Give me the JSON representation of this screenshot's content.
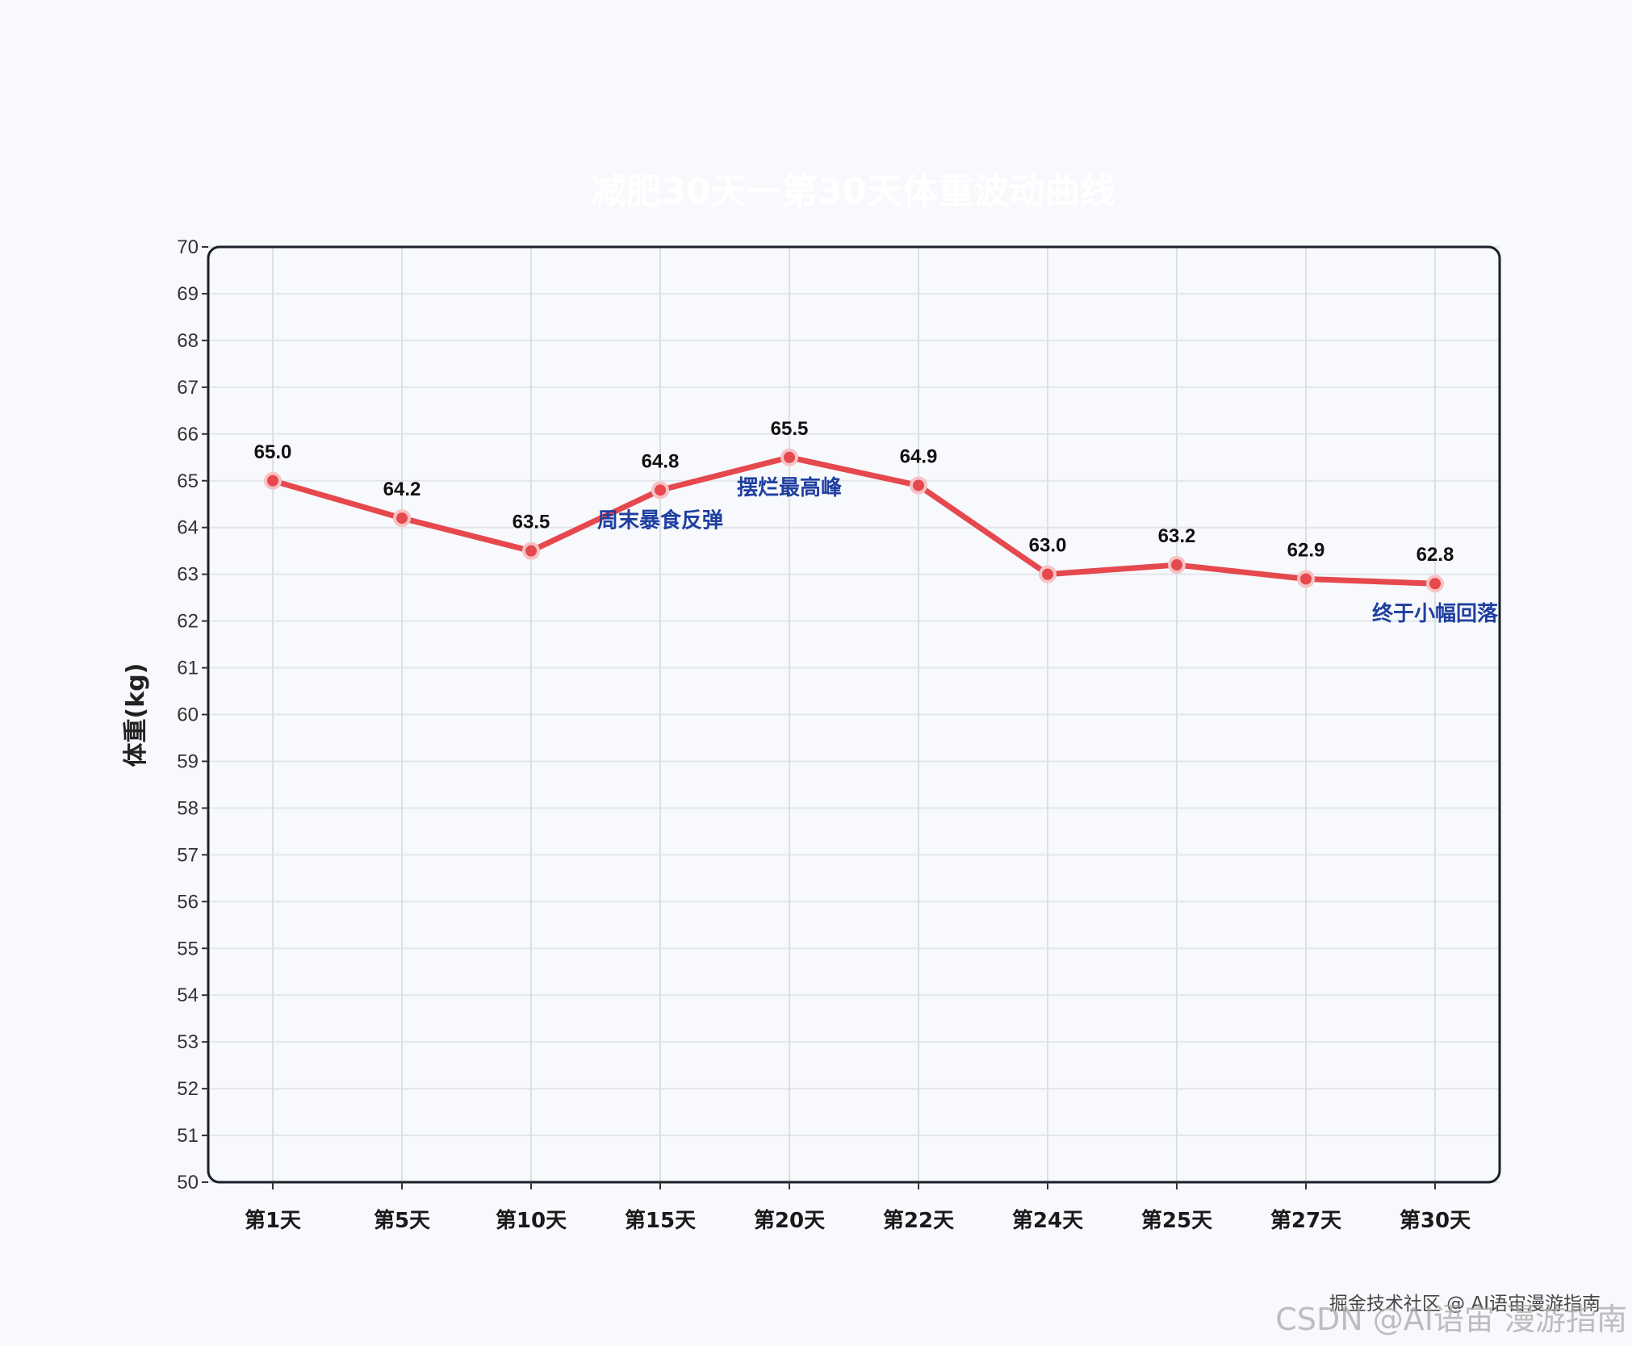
{
  "chart_data": {
    "type": "line",
    "title": "减肥30天一第30天体重波动曲线",
    "xlabel": "",
    "ylabel": "体重(kg)",
    "ylim": [
      50,
      70
    ],
    "y_ticks": [
      70,
      69,
      68,
      67,
      66,
      65,
      64,
      63,
      62,
      61,
      60,
      59,
      58,
      57,
      56,
      55,
      54,
      53,
      52,
      51,
      50
    ],
    "categories": [
      "第1天",
      "第5天",
      "第10天",
      "第15天",
      "第20天",
      "第22天",
      "第24天",
      "第25天",
      "第27天",
      "第30天"
    ],
    "series": [
      {
        "name": "体重",
        "values": [
          65.0,
          64.2,
          63.5,
          64.8,
          65.5,
          64.9,
          63.0,
          63.2,
          62.9,
          62.8
        ],
        "labels": [
          "65.0",
          "64.2",
          "63.5",
          "64.8",
          "65.5",
          "64.9",
          "63.0",
          "63.2",
          "62.9",
          "62.8"
        ]
      }
    ],
    "annotations": [
      {
        "category": "第15天",
        "text": "周末暴食反弹"
      },
      {
        "category": "第20天",
        "text": "摆烂最高峰"
      },
      {
        "category": "第30天",
        "text": "终于小幅回落"
      }
    ],
    "grid": true,
    "colors": {
      "line": "#e5484d",
      "marker": "#e5484d",
      "marker_edge": "#f6c2c4",
      "annotation": "#1f3fa0",
      "frame": "#1c1f2a",
      "grid": "#e3e6ea"
    }
  },
  "watermark": {
    "line1": "掘金技术社区 @ AI语宙漫游指南",
    "line2": "CSDN @AI语宙 漫游指南"
  }
}
